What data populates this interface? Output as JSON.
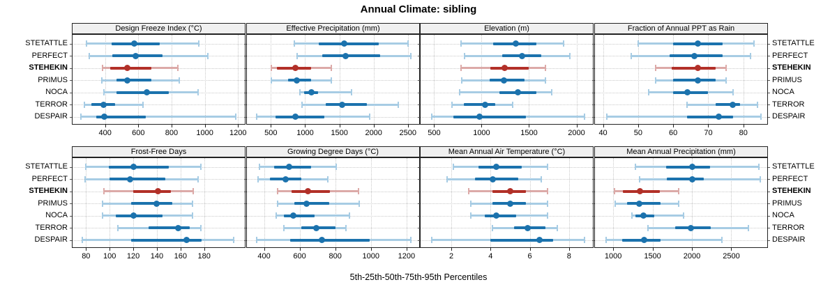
{
  "title": "Annual Climate: sibling",
  "caption": "5th-25th-50th-75th-95th Percentiles",
  "stations": [
    "STETATTLE",
    "PERFECT",
    "STEHEKIN",
    "PRIMUS",
    "NOCA",
    "TERROR",
    "DESPAIR"
  ],
  "highlight_station": "STEHEKIN",
  "percentiles_shown": [
    5,
    25,
    50,
    75,
    95
  ],
  "colors": {
    "blue": "#1b72ad",
    "blue_light": "#a7cce4",
    "red": "#b23028",
    "red_light": "#dcaaa8",
    "strip_bg": "#f0f0f0",
    "panel_border": "#222222",
    "grid": "#c8c8c8"
  },
  "chart_data": [
    {
      "type": "dotplot-interval",
      "title": "Design Freeze Index (°C)",
      "ticks": [
        400,
        600,
        800,
        1000,
        1200
      ],
      "range": [
        200,
        1245
      ],
      "values": {
        "STETATTLE": [
          290,
          440,
          575,
          730,
          965
        ],
        "PERFECT": [
          305,
          445,
          585,
          745,
          1020
        ],
        "STEHEKIN": [
          385,
          430,
          535,
          680,
          840
        ],
        "PRIMUS": [
          380,
          470,
          535,
          680,
          845
        ],
        "NOCA": [
          395,
          470,
          650,
          785,
          960
        ],
        "TERROR": [
          277,
          319,
          392,
          459,
          626
        ],
        "DESPAIR": [
          255,
          345,
          395,
          645,
          1185
        ]
      }
    },
    {
      "type": "dotplot-interval",
      "title": "Effective Precipitation (mm)",
      "ticks": [
        500,
        1000,
        1500,
        2000,
        2500
      ],
      "range": [
        140,
        2675
      ],
      "values": {
        "STETATTLE": [
          840,
          1195,
          1575,
          2075,
          2500
        ],
        "PERFECT": [
          885,
          1245,
          1590,
          2090,
          2545
        ],
        "STEHEKIN": [
          505,
          585,
          860,
          1090,
          1380
        ],
        "PRIMUS": [
          510,
          755,
          875,
          1085,
          1380
        ],
        "NOCA": [
          925,
          980,
          1090,
          1185,
          1675
        ],
        "TERROR": [
          950,
          1305,
          1540,
          1905,
          2360
        ],
        "DESPAIR": [
          295,
          570,
          860,
          1280,
          1940
        ]
      }
    },
    {
      "type": "dotplot-interval",
      "title": "Elevation (m)",
      "ticks": [
        500,
        1000,
        1500,
        2000
      ],
      "range": [
        350,
        2180
      ],
      "values": {
        "STETATTLE": [
          780,
          1125,
          1360,
          1580,
          1865
        ],
        "PERFECT": [
          820,
          1220,
          1430,
          1630,
          1930
        ],
        "STEHEKIN": [
          785,
          1090,
          1245,
          1500,
          1670
        ],
        "PRIMUS": [
          790,
          1085,
          1235,
          1455,
          1675
        ],
        "NOCA": [
          770,
          1185,
          1380,
          1580,
          1740
        ],
        "TERROR": [
          690,
          815,
          1040,
          1145,
          1330
        ],
        "DESPAIR": [
          475,
          700,
          975,
          1470,
          2085
        ]
      }
    },
    {
      "type": "dotplot-interval",
      "title": "Fraction of Annual PPT as Rain",
      "ticks": [
        40,
        50,
        60,
        70,
        80
      ],
      "range": [
        37.5,
        87
      ],
      "values": {
        "STETATTLE": [
          50,
          60,
          67,
          74,
          83
        ],
        "PERFECT": [
          48,
          59,
          66,
          74,
          82
        ],
        "STEHEKIN": [
          55,
          59.5,
          67,
          72,
          75
        ],
        "PRIMUS": [
          55,
          60,
          67,
          72,
          75
        ],
        "NOCA": [
          53,
          60,
          64,
          70,
          77
        ],
        "TERROR": [
          64,
          72,
          77,
          79,
          84
        ],
        "DESPAIR": [
          41,
          64,
          73,
          77,
          85
        ]
      }
    },
    {
      "type": "dotplot-interval",
      "title": "Frost-Free Days",
      "ticks": [
        80,
        100,
        120,
        140,
        160,
        180
      ],
      "range": [
        68,
        215
      ],
      "values": {
        "STETATTLE": [
          80,
          99,
          120,
          150,
          177
        ],
        "PERFECT": [
          79,
          100,
          117,
          147,
          175
        ],
        "STEHEKIN": [
          95,
          120,
          141,
          152,
          171
        ],
        "PRIMUS": [
          94,
          118,
          140,
          153,
          170
        ],
        "NOCA": [
          94,
          105,
          120,
          145,
          170
        ],
        "TERROR": [
          107,
          133,
          158,
          168,
          177
        ],
        "DESPAIR": [
          77,
          118,
          165,
          178,
          205
        ]
      }
    },
    {
      "type": "dotplot-interval",
      "title": "Growing Degree Days (°C)",
      "ticks": [
        400,
        600,
        800,
        1000,
        1200
      ],
      "range": [
        300,
        1275
      ],
      "values": {
        "STETATTLE": [
          375,
          455,
          540,
          665,
          805
        ],
        "PERFECT": [
          365,
          435,
          520,
          610,
          760
        ],
        "STEHEKIN": [
          478,
          553,
          645,
          770,
          930
        ],
        "PRIMUS": [
          478,
          570,
          640,
          765,
          935
        ],
        "NOCA": [
          468,
          510,
          565,
          685,
          880
        ],
        "TERROR": [
          510,
          610,
          695,
          800,
          860
        ],
        "DESPAIR": [
          360,
          545,
          725,
          995,
          1225
        ]
      }
    },
    {
      "type": "dotplot-interval",
      "title": "Mean Annual Air Temperature (°C)",
      "ticks": [
        2,
        4,
        6,
        8
      ],
      "range": [
        0.4,
        9.25
      ],
      "values": {
        "STETATTLE": [
          2.1,
          3.4,
          4.3,
          5.6,
          6.9
        ],
        "PERFECT": [
          1.8,
          3.2,
          4.1,
          5.4,
          6.6
        ],
        "STEHEKIN": [
          2.9,
          4.1,
          5.0,
          5.8,
          6.9
        ],
        "PRIMUS": [
          3.0,
          4.1,
          5.0,
          5.8,
          6.9
        ],
        "NOCA": [
          3.0,
          3.7,
          4.3,
          5.3,
          6.9
        ],
        "TERROR": [
          4.1,
          5.2,
          5.9,
          6.8,
          7.4
        ],
        "DESPAIR": [
          1.0,
          4.0,
          6.5,
          7.2,
          8.8
        ]
      }
    },
    {
      "type": "dotplot-interval",
      "title": "Mean Annual Precipitation (mm)",
      "ticks": [
        1000,
        1500,
        2000,
        2500
      ],
      "range": [
        760,
        2965
      ],
      "values": {
        "STETATTLE": [
          1285,
          1675,
          2000,
          2230,
          2850
        ],
        "PERFECT": [
          1340,
          1680,
          2005,
          2150,
          2870
        ],
        "STEHEKIN": [
          1015,
          1125,
          1340,
          1595,
          1835
        ],
        "PRIMUS": [
          1030,
          1180,
          1335,
          1600,
          1830
        ],
        "NOCA": [
          1235,
          1280,
          1380,
          1520,
          1890
        ],
        "TERROR": [
          1445,
          1790,
          1990,
          2240,
          2715
        ],
        "DESPAIR": [
          910,
          1110,
          1395,
          1600,
          2380
        ]
      }
    }
  ]
}
